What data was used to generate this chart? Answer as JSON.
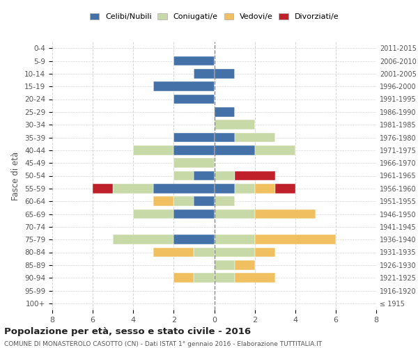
{
  "age_groups": [
    "100+",
    "95-99",
    "90-94",
    "85-89",
    "80-84",
    "75-79",
    "70-74",
    "65-69",
    "60-64",
    "55-59",
    "50-54",
    "45-49",
    "40-44",
    "35-39",
    "30-34",
    "25-29",
    "20-24",
    "15-19",
    "10-14",
    "5-9",
    "0-4"
  ],
  "birth_years": [
    "≤ 1915",
    "1916-1920",
    "1921-1925",
    "1926-1930",
    "1931-1935",
    "1936-1940",
    "1941-1945",
    "1946-1950",
    "1951-1955",
    "1956-1960",
    "1961-1965",
    "1966-1970",
    "1971-1975",
    "1976-1980",
    "1981-1985",
    "1986-1990",
    "1991-1995",
    "1996-2000",
    "2001-2005",
    "2006-2010",
    "2011-2015"
  ],
  "male": {
    "celibi": [
      0,
      0,
      0,
      0,
      0,
      2,
      0,
      2,
      1,
      3,
      1,
      0,
      2,
      2,
      0,
      0,
      2,
      3,
      1,
      2,
      0
    ],
    "coniugati": [
      0,
      0,
      1,
      0,
      1,
      3,
      0,
      2,
      1,
      2,
      1,
      2,
      2,
      0,
      0,
      0,
      0,
      0,
      0,
      0,
      0
    ],
    "vedovi": [
      0,
      0,
      1,
      0,
      2,
      0,
      0,
      0,
      1,
      0,
      0,
      0,
      0,
      0,
      0,
      0,
      0,
      0,
      0,
      0,
      0
    ],
    "divorziati": [
      0,
      0,
      0,
      0,
      0,
      0,
      0,
      0,
      0,
      1,
      0,
      0,
      0,
      0,
      0,
      0,
      0,
      0,
      0,
      0,
      0
    ]
  },
  "female": {
    "celibi": [
      0,
      0,
      0,
      0,
      0,
      0,
      0,
      0,
      0,
      1,
      0,
      0,
      2,
      1,
      0,
      1,
      0,
      0,
      1,
      0,
      0
    ],
    "coniugati": [
      0,
      0,
      1,
      1,
      2,
      2,
      0,
      2,
      1,
      1,
      1,
      0,
      2,
      2,
      2,
      0,
      0,
      0,
      0,
      0,
      0
    ],
    "vedovi": [
      0,
      0,
      2,
      1,
      1,
      4,
      0,
      3,
      0,
      1,
      0,
      0,
      0,
      0,
      0,
      0,
      0,
      0,
      0,
      0,
      0
    ],
    "divorziati": [
      0,
      0,
      0,
      0,
      0,
      0,
      0,
      0,
      0,
      1,
      2,
      0,
      0,
      0,
      0,
      0,
      0,
      0,
      0,
      0,
      0
    ]
  },
  "colors": {
    "celibi": "#4472a8",
    "coniugati": "#c8d9a8",
    "vedovi": "#f0c060",
    "divorziati": "#c0202a"
  },
  "legend_labels": [
    "Celibi/Nubili",
    "Coniugati/e",
    "Vedovi/e",
    "Divorziati/e"
  ],
  "title": "Popolazione per età, sesso e stato civile - 2016",
  "subtitle": "COMUNE DI MONASTEROLO CASOTTO (CN) - Dati ISTAT 1° gennaio 2016 - Elaborazione TUTTITALIA.IT",
  "ylabel": "Fasce di età",
  "xlim": 8,
  "background_color": "#ffffff",
  "grid_color": "#cccccc"
}
